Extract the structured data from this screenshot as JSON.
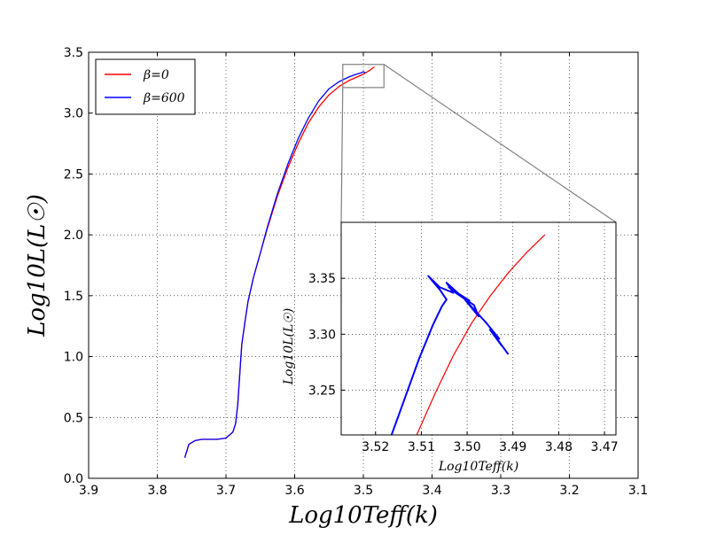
{
  "chart_data": [
    {
      "type": "line",
      "xlabel": "Log10Teff(k)",
      "ylabel": "Log10L(L☉)",
      "xlim": [
        3.9,
        3.1
      ],
      "ylim": [
        0.0,
        3.5
      ],
      "x_ticks": [
        "3.9",
        "3.8",
        "3.7",
        "3.6",
        "3.5",
        "3.4",
        "3.3",
        "3.2",
        "3.1"
      ],
      "y_ticks": [
        "0.0",
        "0.5",
        "1.0",
        "1.5",
        "2.0",
        "2.5",
        "3.0",
        "3.5"
      ],
      "grid": true,
      "legend_position": "top-left",
      "series": [
        {
          "name": "β=0",
          "color": "#ff0000",
          "x": [
            3.76,
            3.754,
            3.745,
            3.735,
            3.725,
            3.713,
            3.7,
            3.69,
            3.686,
            3.683,
            3.68,
            3.677,
            3.672,
            3.668,
            3.66,
            3.65,
            3.64,
            3.625,
            3.61,
            3.595,
            3.58,
            3.565,
            3.55,
            3.535,
            3.52,
            3.508,
            3.5,
            3.491,
            3.484
          ],
          "y": [
            0.17,
            0.28,
            0.31,
            0.32,
            0.32,
            0.32,
            0.33,
            0.38,
            0.45,
            0.6,
            0.85,
            1.1,
            1.3,
            1.45,
            1.65,
            1.85,
            2.05,
            2.32,
            2.55,
            2.75,
            2.92,
            3.05,
            3.15,
            3.22,
            3.27,
            3.3,
            3.32,
            3.35,
            3.38
          ]
        },
        {
          "name": "β=600",
          "color": "#0000ff",
          "x": [
            3.76,
            3.754,
            3.745,
            3.735,
            3.725,
            3.713,
            3.7,
            3.69,
            3.686,
            3.683,
            3.68,
            3.677,
            3.672,
            3.668,
            3.66,
            3.65,
            3.64,
            3.625,
            3.61,
            3.595,
            3.58,
            3.565,
            3.55,
            3.535,
            3.52,
            3.51,
            3.504,
            3.5,
            3.497
          ],
          "y": [
            0.17,
            0.28,
            0.31,
            0.32,
            0.32,
            0.32,
            0.33,
            0.38,
            0.45,
            0.6,
            0.85,
            1.1,
            1.3,
            1.45,
            1.65,
            1.85,
            2.06,
            2.34,
            2.58,
            2.79,
            2.96,
            3.1,
            3.2,
            3.26,
            3.3,
            3.32,
            3.33,
            3.34,
            3.33
          ]
        }
      ],
      "zoom_box": {
        "xlim": [
          3.53,
          3.47
        ],
        "ylim": [
          3.21,
          3.4
        ]
      }
    },
    {
      "type": "line",
      "title": "",
      "xlabel": "Log10Teff(k)",
      "ylabel": "Log10L(L☉)",
      "xlim": [
        3.5275,
        3.4675
      ],
      "ylim": [
        3.21,
        3.4
      ],
      "x_ticks": [
        "3.52",
        "3.51",
        "3.50",
        "3.49",
        "3.48",
        "3.47"
      ],
      "y_ticks": [
        "3.25",
        "3.30",
        "3.35"
      ],
      "grid": true,
      "series": [
        {
          "name": "β=0",
          "color": "#ff0000",
          "x": [
            3.511,
            3.507,
            3.503,
            3.499,
            3.495,
            3.491,
            3.487,
            3.483
          ],
          "y": [
            3.21,
            3.247,
            3.281,
            3.31,
            3.334,
            3.355,
            3.373,
            3.389
          ]
        },
        {
          "name": "β=600",
          "color": "#0000ff",
          "x": [
            3.5165,
            3.5135,
            3.5105,
            3.5075,
            3.5055,
            3.5045,
            3.506,
            3.5085,
            3.506,
            3.503,
            3.5045,
            3.501,
            3.504,
            3.4995,
            3.5025,
            3.4985,
            3.4975,
            3.5005,
            3.496,
            3.493,
            3.495,
            3.4925,
            3.4935,
            3.491
          ],
          "y": [
            3.21,
            3.244,
            3.278,
            3.308,
            3.325,
            3.331,
            3.34,
            3.352,
            3.342,
            3.337,
            3.346,
            3.333,
            3.342,
            3.33,
            3.337,
            3.326,
            3.316,
            3.331,
            3.311,
            3.296,
            3.304,
            3.29,
            3.296,
            3.282
          ]
        }
      ]
    }
  ]
}
